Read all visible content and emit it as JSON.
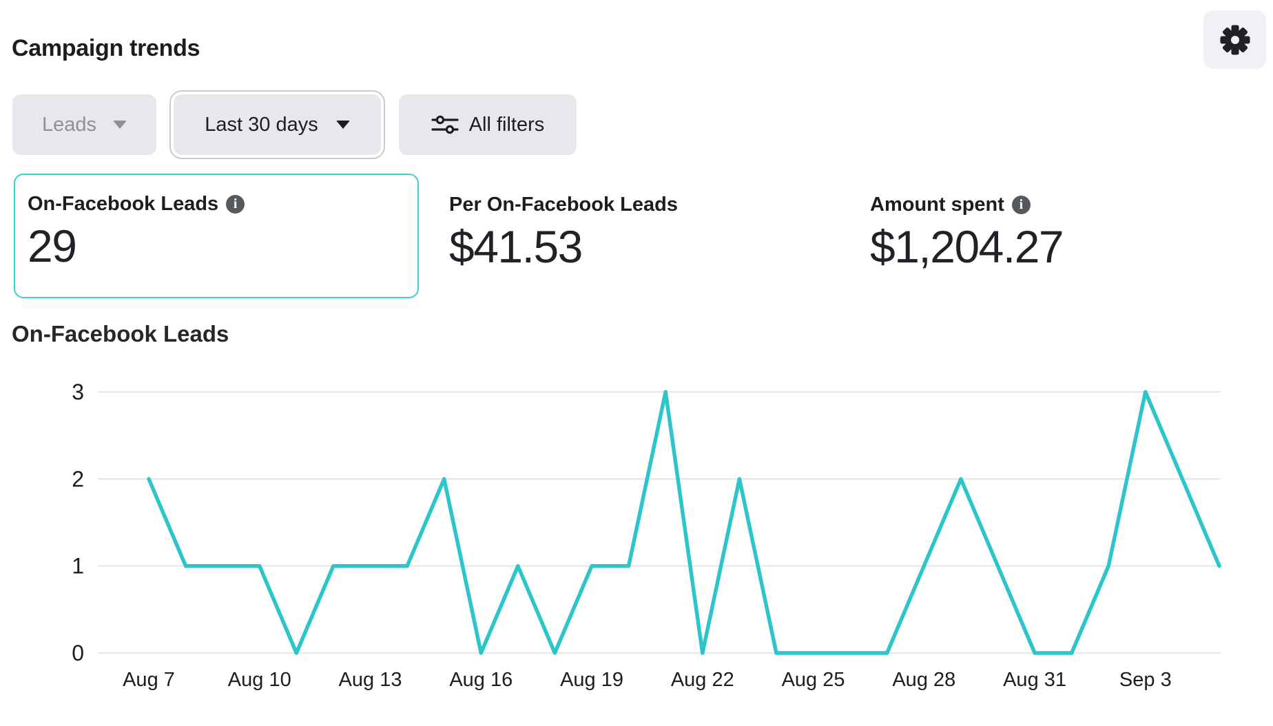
{
  "colors": {
    "accent_teal": "#2cc5c9",
    "card_border": "#3ecdd1",
    "grid_line": "#e4e5e7",
    "text_dark": "#1b1d1f",
    "text_muted": "#8d9095",
    "button_bg": "#e7e8eb",
    "gear_button_bg": "#f0f1f4",
    "info_icon_bg": "#55585c"
  },
  "header": {
    "title": "Campaign trends"
  },
  "filters": {
    "metric_dropdown_label": "Leads",
    "date_range_label": "Last 30 days",
    "all_filters_label": "All filters"
  },
  "icons": {
    "info_glyph": "i"
  },
  "metrics": [
    {
      "label": "On-Facebook Leads",
      "value": "29"
    },
    {
      "label": "Per On-Facebook Leads",
      "value": "$41.53"
    },
    {
      "label": "Amount spent",
      "value": "$1,204.27"
    }
  ],
  "chart": {
    "section_title": "On-Facebook Leads"
  },
  "chart_data": {
    "type": "line",
    "title": "On-Facebook Leads",
    "x": [
      "Aug 7",
      "Aug 8",
      "Aug 9",
      "Aug 10",
      "Aug 11",
      "Aug 12",
      "Aug 13",
      "Aug 14",
      "Aug 15",
      "Aug 16",
      "Aug 17",
      "Aug 18",
      "Aug 19",
      "Aug 20",
      "Aug 21",
      "Aug 22",
      "Aug 23",
      "Aug 24",
      "Aug 25",
      "Aug 26",
      "Aug 27",
      "Aug 28",
      "Aug 29",
      "Aug 30",
      "Aug 31",
      "Sep 1",
      "Sep 2",
      "Sep 3",
      "Sep 4",
      "Sep 5"
    ],
    "values": [
      2,
      1,
      1,
      1,
      0,
      1,
      1,
      1,
      2,
      0,
      1,
      0,
      1,
      1,
      3,
      0,
      2,
      0,
      0,
      0,
      0,
      1,
      2,
      1,
      0,
      0,
      1,
      3,
      2,
      1
    ],
    "x_tick_labels": [
      "Aug 7",
      "Aug 10",
      "Aug 13",
      "Aug 16",
      "Aug 19",
      "Aug 22",
      "Aug 25",
      "Aug 28",
      "Aug 31",
      "Sep 3"
    ],
    "x_tick_indices": [
      0,
      3,
      6,
      9,
      12,
      15,
      18,
      21,
      24,
      27
    ],
    "y_ticks": [
      0,
      1,
      2,
      3
    ],
    "ylim": [
      0,
      3
    ],
    "xlabel": "",
    "ylabel": "",
    "grid": true,
    "legend": "none",
    "line_color": "#2cc5c9"
  }
}
